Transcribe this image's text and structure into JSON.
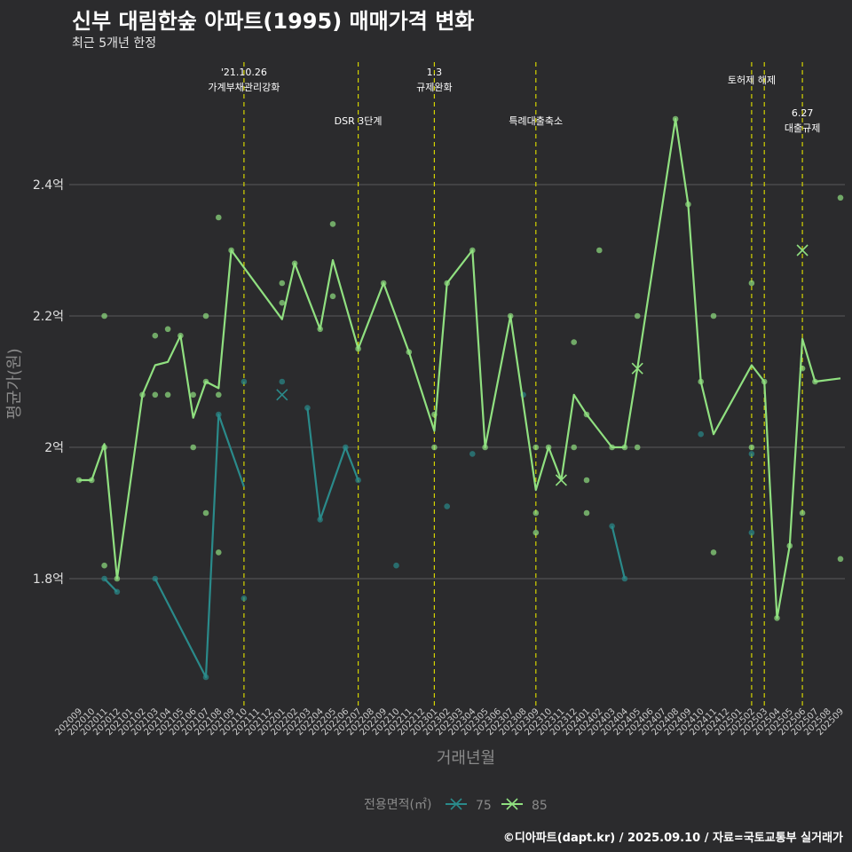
{
  "header": {
    "title": "신부 대림한숲 아파트(1995) 매매가격 변화",
    "subtitle": "최근 5개년 한정"
  },
  "credit": "©디아파트(dapt.kr) / 2025.09.10 / 자료=국토교통부 실거래가",
  "colors": {
    "background": "#2b2b2d",
    "grid": "#5a5a5a",
    "event_line": "#d4d400",
    "series_75": "#2a8a8a",
    "series_85": "#90e080"
  },
  "chart_data": {
    "type": "line",
    "xlabel": "거래년월",
    "ylabel": "평균가(원)",
    "categories": [
      "202009",
      "202010",
      "202011",
      "202012",
      "202101",
      "202102",
      "202103",
      "202104",
      "202105",
      "202106",
      "202107",
      "202108",
      "202109",
      "202110",
      "202111",
      "202112",
      "202201",
      "202202",
      "202203",
      "202204",
      "202205",
      "202206",
      "202207",
      "202208",
      "202209",
      "202210",
      "202211",
      "202212",
      "202301",
      "202302",
      "202303",
      "202304",
      "202305",
      "202306",
      "202307",
      "202308",
      "202309",
      "202310",
      "202311",
      "202312",
      "202401",
      "202402",
      "202403",
      "202404",
      "202405",
      "202406",
      "202407",
      "202408",
      "202409",
      "202410",
      "202411",
      "202412",
      "202501",
      "202502",
      "202503",
      "202504",
      "202505",
      "202506",
      "202507",
      "202508",
      "202509"
    ],
    "ylim": [
      1.55,
      2.55
    ],
    "yticks": [
      {
        "value": 1.8,
        "label": "1.8억"
      },
      {
        "value": 2.0,
        "label": "2억"
      },
      {
        "value": 2.2,
        "label": "2.2억"
      },
      {
        "value": 2.4,
        "label": "2.4억"
      }
    ],
    "grid": true,
    "legend": {
      "title": "전용면적(㎡)",
      "position": "bottom",
      "items": [
        {
          "label": "75",
          "series": "75"
        },
        {
          "label": "85",
          "series": "85"
        }
      ]
    },
    "series": [
      {
        "name": "75",
        "line_segments": [
          [
            [
              "202011",
              1.8
            ],
            [
              "202012",
              1.78
            ]
          ],
          [
            [
              "202103",
              1.8
            ],
            [
              "202107",
              1.65
            ],
            [
              "202108",
              2.05
            ],
            [
              "202110",
              1.94
            ]
          ],
          [
            [
              "202203",
              2.06
            ],
            [
              "202204",
              1.89
            ],
            [
              "202206",
              2.0
            ],
            [
              "202207",
              1.95
            ]
          ],
          [
            [
              "202403",
              1.88
            ],
            [
              "202404",
              1.8
            ]
          ]
        ],
        "points": [
          [
            "202011",
            1.8
          ],
          [
            "202012",
            1.78
          ],
          [
            "202103",
            1.8
          ],
          [
            "202107",
            1.65
          ],
          [
            "202108",
            2.05
          ],
          [
            "202110",
            2.1
          ],
          [
            "202110",
            1.77
          ],
          [
            "202201",
            2.1
          ],
          [
            "202203",
            2.06
          ],
          [
            "202204",
            1.89
          ],
          [
            "202206",
            2.0
          ],
          [
            "202207",
            1.95
          ],
          [
            "202210",
            1.82
          ],
          [
            "202302",
            1.91
          ],
          [
            "202304",
            1.99
          ],
          [
            "202308",
            2.08
          ],
          [
            "202403",
            1.88
          ],
          [
            "202404",
            1.8
          ],
          [
            "202410",
            2.02
          ],
          [
            "202502",
            1.99
          ],
          [
            "202502",
            1.87
          ]
        ],
        "x_markers": [
          [
            "202201",
            2.08
          ]
        ]
      },
      {
        "name": "85",
        "line_segments": [
          [
            [
              "202009",
              1.95
            ],
            [
              "202010",
              1.95
            ],
            [
              "202011",
              2.005
            ],
            [
              "202012",
              1.8
            ],
            [
              "202102",
              2.08
            ],
            [
              "202103",
              2.125
            ],
            [
              "202104",
              2.13
            ],
            [
              "202105",
              2.17
            ],
            [
              "202106",
              2.045
            ],
            [
              "202107",
              2.1
            ],
            [
              "202108",
              2.09
            ],
            [
              "202109",
              2.3
            ],
            [
              "202201",
              2.195
            ],
            [
              "202202",
              2.28
            ],
            [
              "202204",
              2.18
            ],
            [
              "202205",
              2.285
            ],
            [
              "202207",
              2.15
            ],
            [
              "202209",
              2.25
            ],
            [
              "202211",
              2.145
            ],
            [
              "202301",
              2.025
            ],
            [
              "202302",
              2.25
            ],
            [
              "202304",
              2.3
            ],
            [
              "202305",
              2.0
            ],
            [
              "202307",
              2.2
            ],
            [
              "202309",
              1.935
            ],
            [
              "202310",
              2.0
            ],
            [
              "202311",
              1.95
            ],
            [
              "202312",
              2.08
            ],
            [
              "202401",
              2.05
            ],
            [
              "202403",
              2.0
            ],
            [
              "202404",
              2.0
            ],
            [
              "202405",
              2.12
            ],
            [
              "202408",
              2.5
            ],
            [
              "202409",
              2.37
            ],
            [
              "202410",
              2.1
            ],
            [
              "202411",
              2.02
            ],
            [
              "202502",
              2.125
            ],
            [
              "202503",
              2.1
            ],
            [
              "202504",
              1.74
            ],
            [
              "202505",
              1.85
            ],
            [
              "202506",
              2.165
            ],
            [
              "202507",
              2.1
            ],
            [
              "202509",
              2.105
            ]
          ]
        ],
        "points": [
          [
            "202009",
            1.95
          ],
          [
            "202010",
            1.95
          ],
          [
            "202011",
            2.2
          ],
          [
            "202011",
            2.0
          ],
          [
            "202011",
            1.82
          ],
          [
            "202012",
            1.8
          ],
          [
            "202102",
            2.08
          ],
          [
            "202103",
            2.17
          ],
          [
            "202103",
            2.08
          ],
          [
            "202104",
            2.18
          ],
          [
            "202104",
            2.08
          ],
          [
            "202105",
            2.17
          ],
          [
            "202106",
            2.08
          ],
          [
            "202106",
            2.0
          ],
          [
            "202107",
            2.2
          ],
          [
            "202107",
            2.1
          ],
          [
            "202107",
            1.9
          ],
          [
            "202108",
            2.35
          ],
          [
            "202108",
            2.08
          ],
          [
            "202108",
            1.84
          ],
          [
            "202109",
            2.3
          ],
          [
            "202201",
            2.25
          ],
          [
            "202201",
            2.22
          ],
          [
            "202202",
            2.28
          ],
          [
            "202204",
            2.18
          ],
          [
            "202205",
            2.34
          ],
          [
            "202205",
            2.23
          ],
          [
            "202207",
            2.15
          ],
          [
            "202209",
            2.25
          ],
          [
            "202211",
            2.145
          ],
          [
            "202301",
            2.05
          ],
          [
            "202301",
            2.0
          ],
          [
            "202302",
            2.25
          ],
          [
            "202304",
            2.3
          ],
          [
            "202305",
            2.0
          ],
          [
            "202307",
            2.2
          ],
          [
            "202309",
            2.0
          ],
          [
            "202309",
            1.9
          ],
          [
            "202309",
            1.87
          ],
          [
            "202310",
            2.0
          ],
          [
            "202312",
            2.16
          ],
          [
            "202312",
            2.0
          ],
          [
            "202401",
            2.05
          ],
          [
            "202401",
            1.95
          ],
          [
            "202401",
            1.9
          ],
          [
            "202402",
            2.3
          ],
          [
            "202403",
            2.0
          ],
          [
            "202404",
            2.0
          ],
          [
            "202405",
            2.2
          ],
          [
            "202405",
            2.0
          ],
          [
            "202408",
            2.5
          ],
          [
            "202409",
            2.37
          ],
          [
            "202410",
            2.1
          ],
          [
            "202411",
            2.2
          ],
          [
            "202411",
            1.84
          ],
          [
            "202502",
            2.25
          ],
          [
            "202502",
            2.0
          ],
          [
            "202503",
            2.1
          ],
          [
            "202504",
            1.74
          ],
          [
            "202505",
            1.85
          ],
          [
            "202506",
            2.12
          ],
          [
            "202506",
            1.9
          ],
          [
            "202507",
            2.1
          ],
          [
            "202509",
            2.38
          ],
          [
            "202509",
            1.83
          ]
        ],
        "x_markers": [
          [
            "202311",
            1.95
          ],
          [
            "202405",
            2.12
          ],
          [
            "202506",
            2.3
          ]
        ]
      }
    ],
    "annotations": [
      {
        "x": "202110",
        "lines": [
          "'21.10.26",
          "가계부채관리강화"
        ],
        "level": 1
      },
      {
        "x": "202207",
        "lines": [
          "DSR 3단계"
        ],
        "level": 2
      },
      {
        "x": "202301",
        "lines": [
          "1.3",
          "규제완화"
        ],
        "level": 1
      },
      {
        "x": "202309",
        "lines": [
          "특례대출축소"
        ],
        "level": 2
      },
      {
        "x": "202502",
        "lines": [
          "토허제 해제"
        ],
        "level": 1
      },
      {
        "x": "202503",
        "lines": [],
        "level": 1
      },
      {
        "x": "202506",
        "lines": [
          "6.27",
          "대출규제"
        ],
        "level": 2
      }
    ]
  }
}
